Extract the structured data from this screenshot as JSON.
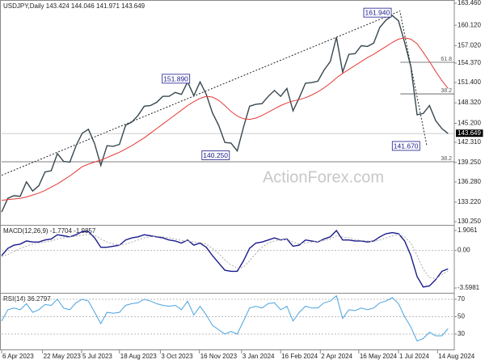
{
  "chart_data": [
    {
      "type": "line",
      "title": "USDJPY,Daily  143.424 144.046 141.971 143.649",
      "xlim": [
        0,
        73
      ],
      "ylim": [
        129.76,
        163.71
      ],
      "yticks": [
        {
          "value": 163.46,
          "label": "163.460"
        },
        {
          "value": 160.12,
          "label": "160.120"
        },
        {
          "value": 157.02,
          "label": "157.020"
        },
        {
          "value": 154.37,
          "label": "154.370"
        },
        {
          "value": 151.4,
          "label": "151.400"
        },
        {
          "value": 148.32,
          "label": "148.320"
        },
        {
          "value": 145.2,
          "label": "145.200"
        },
        {
          "value": 142.31,
          "label": "142.310"
        },
        {
          "value": 139.25,
          "label": "139.250"
        },
        {
          "value": 136.28,
          "label": "136.280"
        },
        {
          "value": 133.22,
          "label": "133.220"
        },
        {
          "value": 130.25,
          "label": "130.250"
        }
      ],
      "last_price": {
        "value": 143.649,
        "label": "143.649"
      },
      "series": [
        {
          "color": "#37474f",
          "values": [
            131.7,
            133.8,
            134.2,
            134.1,
            136.3,
            134.9,
            135.7,
            137.8,
            138.0,
            140.6,
            139.4,
            139.3,
            141.8,
            143.7,
            144.3,
            142.1,
            138.8,
            141.8,
            141.7,
            142.0,
            144.9,
            145.4,
            146.4,
            147.8,
            147.9,
            148.4,
            149.3,
            149.3,
            149.9,
            149.6,
            151.5,
            149.4,
            151.5,
            149.6,
            146.8,
            144.9,
            142.3,
            142.2,
            141.0,
            144.6,
            147.8,
            148.1,
            148.2,
            149.3,
            150.2,
            149.3,
            150.5,
            147.1,
            149.1,
            151.3,
            151.4,
            151.6,
            153.3,
            154.6,
            158.3,
            153.0,
            155.7,
            155.8,
            157.0,
            156.9,
            157.4,
            159.8,
            160.9,
            161.6,
            160.8,
            157.5,
            153.8,
            146.5,
            146.7,
            147.9,
            145.6,
            144.4,
            143.649
          ]
        },
        {
          "color": "#e53935",
          "values": [
            133.5,
            133.6,
            133.7,
            133.8,
            134.0,
            134.3,
            134.6,
            135.0,
            135.5,
            136.0,
            136.6,
            137.2,
            137.9,
            138.6,
            139.0,
            139.3,
            139.6,
            140.0,
            140.4,
            140.8,
            141.3,
            141.8,
            142.4,
            143.0,
            143.7,
            144.4,
            145.1,
            145.8,
            146.5,
            147.2,
            147.9,
            148.5,
            149.0,
            149.3,
            149.2,
            148.7,
            147.9,
            147.0,
            146.3,
            145.9,
            145.8,
            146.0,
            146.4,
            146.9,
            147.4,
            147.9,
            148.3,
            148.6,
            148.8,
            149.1,
            149.5,
            150.0,
            150.6,
            151.3,
            152.1,
            152.8,
            153.4,
            154.0,
            154.6,
            155.2,
            155.7,
            156.3,
            156.9,
            157.5,
            158.0,
            158.2,
            158.0,
            157.3,
            156.0,
            154.6,
            153.1,
            151.7,
            150.5
          ]
        }
      ],
      "trendlines": [
        {
          "x": [
            0,
            64.3
          ],
          "y": [
            137.3,
            162.3
          ]
        },
        {
          "x": [
            64.3,
            68.6
          ],
          "y": [
            161.94,
            141.67
          ]
        }
      ],
      "levels": [
        {
          "label": "61.8",
          "value": 154.48,
          "x0": 64.3
        },
        {
          "label": "38.2",
          "value": 149.68,
          "x0": 64.3
        },
        {
          "label": "38.2",
          "value": 139.35,
          "x0": 0
        }
      ],
      "callouts": [
        {
          "label": "161.940",
          "x": 60.6,
          "value": 161.94
        },
        {
          "label": "151.890",
          "x": 28.1,
          "value": 151.89
        },
        {
          "label": "140.250",
          "x": 34.5,
          "value": 140.25
        },
        {
          "label": "141.670",
          "x": 65.2,
          "value": 141.67
        }
      ],
      "watermark": "ActionForex.com"
    },
    {
      "type": "line",
      "title": "MACD(12,26,9) -1.7704 -1.9857",
      "xlim": [
        0,
        73
      ],
      "ylim": [
        -4.06,
        2.29
      ],
      "yticks": [
        {
          "value": 1.9061,
          "label": "1.9061"
        },
        {
          "value": 0,
          "label": "0.00"
        },
        {
          "value": -3.5981,
          "label": "-3.5981"
        }
      ],
      "grid_ticks": [
        1
      ],
      "series": [
        {
          "color": "#1a1a8c",
          "style": "solid",
          "values": [
            -0.5,
            0.2,
            0.5,
            0.6,
            0.9,
            0.8,
            0.8,
            1.0,
            1.1,
            1.5,
            1.4,
            1.3,
            1.5,
            1.8,
            1.8,
            1.2,
            0.3,
            0.3,
            0.4,
            0.5,
            1.0,
            1.2,
            1.3,
            1.5,
            1.4,
            1.3,
            1.2,
            1.0,
            0.9,
            0.7,
            1.0,
            0.5,
            0.7,
            0.3,
            -0.5,
            -1.2,
            -1.9,
            -2.0,
            -2.0,
            -1.0,
            0.2,
            0.7,
            0.8,
            1.0,
            1.2,
            1.0,
            1.1,
            0.4,
            0.5,
            1.0,
            0.9,
            0.8,
            1.1,
            1.3,
            1.9,
            1.0,
            1.0,
            0.9,
            0.9,
            0.8,
            0.9,
            1.3,
            1.6,
            1.7,
            1.6,
            0.9,
            -0.5,
            -2.5,
            -3.5,
            -3.4,
            -2.8,
            -2.0,
            -1.7704
          ]
        },
        {
          "color": "#aaaaaa",
          "style": "dotted",
          "values": [
            -0.6,
            -0.4,
            -0.1,
            0.2,
            0.4,
            0.6,
            0.7,
            0.8,
            0.9,
            1.1,
            1.2,
            1.3,
            1.35,
            1.45,
            1.55,
            1.45,
            1.1,
            0.8,
            0.6,
            0.5,
            0.6,
            0.8,
            1.0,
            1.2,
            1.3,
            1.35,
            1.3,
            1.2,
            1.1,
            0.95,
            0.9,
            0.8,
            0.75,
            0.6,
            0.2,
            -0.3,
            -0.9,
            -1.4,
            -1.7,
            -1.6,
            -1.0,
            -0.3,
            0.3,
            0.7,
            0.9,
            1.0,
            1.05,
            0.8,
            0.6,
            0.7,
            0.8,
            0.85,
            0.95,
            1.1,
            1.4,
            1.3,
            1.2,
            1.05,
            0.95,
            0.9,
            0.85,
            1.0,
            1.2,
            1.4,
            1.5,
            1.3,
            0.7,
            -0.5,
            -1.8,
            -2.6,
            -2.7,
            -2.3,
            -1.9857
          ]
        }
      ]
    },
    {
      "type": "line",
      "title": "RSI(14) 36.2797",
      "xlim": [
        0,
        73
      ],
      "ylim": [
        12.3,
        75.6
      ],
      "yticks": [
        70,
        50,
        30
      ],
      "grid_ticks": [
        0,
        1,
        2
      ],
      "series": [
        {
          "color": "#4aa3df",
          "style": "solid",
          "values": [
            45,
            58,
            60,
            58,
            65,
            55,
            58,
            64,
            63,
            70,
            60,
            58,
            66,
            70,
            68,
            55,
            42,
            55,
            54,
            55,
            63,
            65,
            66,
            70,
            68,
            65,
            63,
            62,
            63,
            58,
            68,
            52,
            62,
            52,
            40,
            35,
            30,
            33,
            30,
            45,
            60,
            62,
            60,
            65,
            66,
            58,
            62,
            45,
            55,
            62,
            60,
            60,
            66,
            68,
            74,
            48,
            58,
            57,
            60,
            58,
            60,
            66,
            68,
            72,
            65,
            50,
            38,
            22,
            25,
            32,
            28,
            28,
            36.2797
          ]
        }
      ],
      "xticks": [
        {
          "value": 0,
          "label": "6 Apr 2023"
        },
        {
          "value": 6.6,
          "label": "22 May 2023"
        },
        {
          "value": 12.9,
          "label": "5 Jul 2023"
        },
        {
          "value": 19,
          "label": "18 Aug 2023"
        },
        {
          "value": 25.6,
          "label": "3 Oct 2023"
        },
        {
          "value": 31.9,
          "label": "16 Nov 2023"
        },
        {
          "value": 38.7,
          "label": "3 Jan 2024"
        },
        {
          "value": 45,
          "label": "16 Feb 2024"
        },
        {
          "value": 51.4,
          "label": "2 Apr 2024"
        },
        {
          "value": 57.6,
          "label": "16 May 2024"
        },
        {
          "value": 64,
          "label": "1 Jul 2024"
        },
        {
          "value": 70.3,
          "label": "14 Aug 2024"
        }
      ]
    }
  ]
}
